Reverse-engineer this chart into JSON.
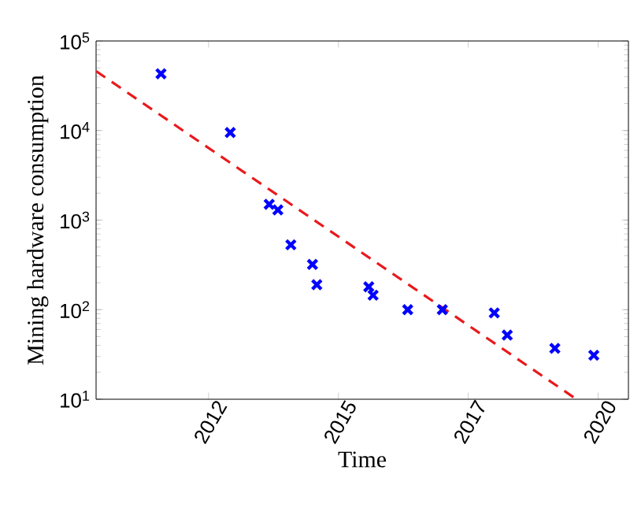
{
  "chart_data": {
    "type": "scatter",
    "xlabel": "Time",
    "ylabel": "Mining hardware consumption",
    "log": "y",
    "marker": "cross",
    "xlim": [
      "2010-05",
      "2020-08"
    ],
    "ylim": [
      10,
      100000
    ],
    "xticks": [
      {
        "value": "2012-07",
        "label": "2012"
      },
      {
        "value": "2015-01",
        "label": "2015"
      },
      {
        "value": "2017-07",
        "label": "2017"
      },
      {
        "value": "2020-01",
        "label": "2020"
      }
    ],
    "yticks": [
      {
        "value": 10,
        "label": "10$^{1}$"
      },
      {
        "value": 100,
        "label": "10$^{2}$"
      },
      {
        "value": 1000,
        "label": "10$^{3}$"
      },
      {
        "value": 10000,
        "label": "10$^{4}$"
      },
      {
        "value": 100000,
        "label": "10$^{5}$"
      }
    ],
    "series": [
      {
        "color": "#0000ff",
        "x": [
          "2011-08",
          "2012-12",
          "2013-09",
          "2013-11",
          "2014-02",
          "2014-07",
          "2014-08",
          "2015-08",
          "2015-09",
          "2016-05",
          "2017-01",
          "2018-01",
          "2018-04",
          "2019-03",
          "2019-12"
        ],
        "values": [
          43000,
          9500,
          1500,
          1300,
          530,
          320,
          190,
          180,
          145,
          100,
          100,
          92,
          52,
          37,
          31
        ]
      },
      {
        "type": "line",
        "color": "#e8191c",
        "line_style": "dashed",
        "marker": "none",
        "x": [
          "2010-05",
          "2019-08"
        ],
        "values": [
          46000,
          10
        ]
      }
    ]
  }
}
